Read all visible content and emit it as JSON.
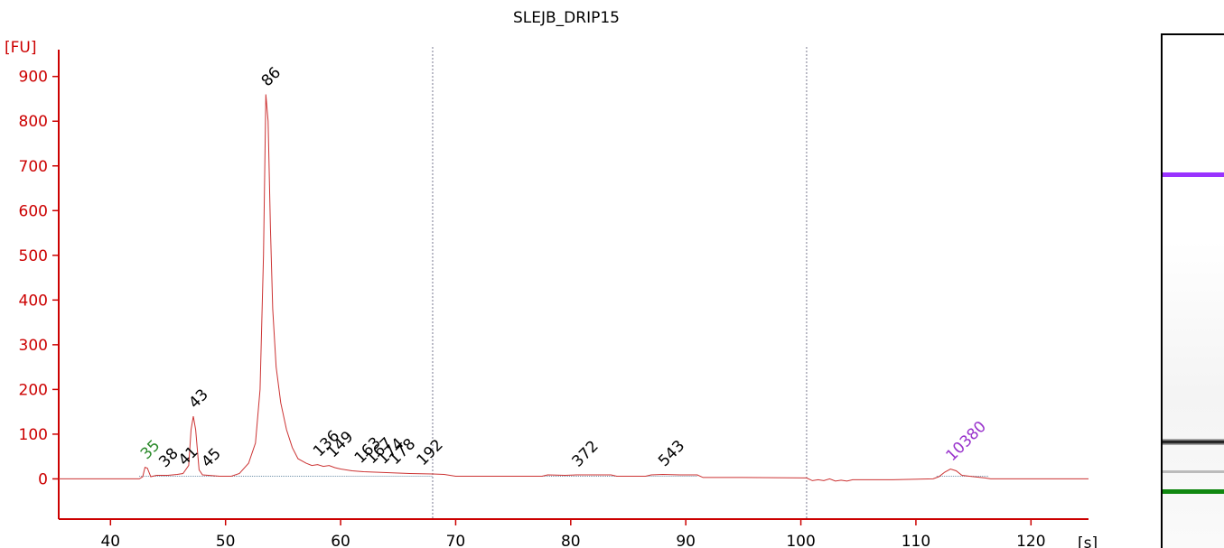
{
  "chart_data": {
    "type": "line",
    "title": "SLEJB_DRIP15",
    "y_unit": "[FU]",
    "x_unit": "[s]",
    "xlim": [
      35.5,
      125
    ],
    "ylim": [
      -90,
      960
    ],
    "x_ticks": [
      40,
      50,
      60,
      70,
      80,
      90,
      100,
      110,
      120
    ],
    "y_ticks": [
      0,
      100,
      200,
      300,
      400,
      500,
      600,
      700,
      800,
      900
    ],
    "grid": false,
    "markers_dotted_x": [
      68.0,
      100.5
    ],
    "series": [
      {
        "color": "#cc3333",
        "points": [
          [
            35.5,
            0
          ],
          [
            42.5,
            0
          ],
          [
            42.8,
            5
          ],
          [
            43.0,
            26
          ],
          [
            43.2,
            24
          ],
          [
            43.5,
            5
          ],
          [
            44.0,
            8
          ],
          [
            45.0,
            8
          ],
          [
            45.8,
            10
          ],
          [
            46.3,
            12
          ],
          [
            46.8,
            30
          ],
          [
            47.0,
            110
          ],
          [
            47.2,
            140
          ],
          [
            47.4,
            110
          ],
          [
            47.7,
            20
          ],
          [
            48.0,
            9
          ],
          [
            48.5,
            8
          ],
          [
            49.5,
            6
          ],
          [
            50.5,
            6
          ],
          [
            51.2,
            12
          ],
          [
            52.0,
            35
          ],
          [
            52.6,
            80
          ],
          [
            53.0,
            200
          ],
          [
            53.3,
            500
          ],
          [
            53.5,
            860
          ],
          [
            53.7,
            800
          ],
          [
            53.9,
            560
          ],
          [
            54.1,
            380
          ],
          [
            54.4,
            250
          ],
          [
            54.8,
            170
          ],
          [
            55.3,
            110
          ],
          [
            55.8,
            70
          ],
          [
            56.3,
            45
          ],
          [
            57.0,
            35
          ],
          [
            57.5,
            30
          ],
          [
            58.0,
            32
          ],
          [
            58.5,
            28
          ],
          [
            59.0,
            30
          ],
          [
            59.5,
            25
          ],
          [
            60.0,
            22
          ],
          [
            61.0,
            18
          ],
          [
            62.0,
            16
          ],
          [
            63.0,
            15
          ],
          [
            64.0,
            14
          ],
          [
            65.0,
            13
          ],
          [
            66.0,
            12
          ],
          [
            68.0,
            11
          ],
          [
            69.0,
            10
          ],
          [
            70.0,
            6
          ],
          [
            72.0,
            6
          ],
          [
            75.0,
            6
          ],
          [
            77.5,
            6
          ],
          [
            78.0,
            9
          ],
          [
            79.5,
            8
          ],
          [
            80.5,
            9
          ],
          [
            82.0,
            9
          ],
          [
            83.5,
            9
          ],
          [
            84.0,
            6
          ],
          [
            86.5,
            6
          ],
          [
            87.0,
            9
          ],
          [
            88.0,
            10
          ],
          [
            89.5,
            9
          ],
          [
            91.0,
            9
          ],
          [
            91.5,
            3
          ],
          [
            95.0,
            3
          ],
          [
            100.5,
            2
          ],
          [
            101.0,
            -4
          ],
          [
            101.5,
            -2
          ],
          [
            102.0,
            -4
          ],
          [
            102.5,
            0
          ],
          [
            103.0,
            -5
          ],
          [
            103.5,
            -3
          ],
          [
            104.0,
            -5
          ],
          [
            104.5,
            -2
          ],
          [
            105.0,
            -2
          ],
          [
            108.0,
            -2
          ],
          [
            111.5,
            0
          ],
          [
            112.0,
            5
          ],
          [
            112.5,
            15
          ],
          [
            113.0,
            22
          ],
          [
            113.5,
            18
          ],
          [
            114.0,
            8
          ],
          [
            115.0,
            5
          ],
          [
            116.0,
            2
          ],
          [
            116.5,
            0
          ],
          [
            125.0,
            0
          ]
        ]
      }
    ],
    "peaks": [
      {
        "label": "35",
        "x": 43.0,
        "y": 26,
        "color": "#2a8a2a"
      },
      {
        "label": "38",
        "x": 44.6,
        "y": 8,
        "color": "#000000"
      },
      {
        "label": "41",
        "x": 46.3,
        "y": 12,
        "color": "#000000"
      },
      {
        "label": "43",
        "x": 47.2,
        "y": 140,
        "color": "#000000"
      },
      {
        "label": "45",
        "x": 48.3,
        "y": 8,
        "color": "#000000"
      },
      {
        "label": "86",
        "x": 53.5,
        "y": 860,
        "color": "#000000"
      },
      {
        "label": "136",
        "x": 58.0,
        "y": 32,
        "color": "#000000"
      },
      {
        "label": "149",
        "x": 59.2,
        "y": 30,
        "color": "#000000"
      },
      {
        "label": "163",
        "x": 61.6,
        "y": 17,
        "color": "#000000"
      },
      {
        "label": "167",
        "x": 62.6,
        "y": 16,
        "color": "#000000"
      },
      {
        "label": "174",
        "x": 63.6,
        "y": 15,
        "color": "#000000"
      },
      {
        "label": "178",
        "x": 64.6,
        "y": 14,
        "color": "#000000"
      },
      {
        "label": "192",
        "x": 67.0,
        "y": 12,
        "color": "#000000"
      },
      {
        "label": "372",
        "x": 80.5,
        "y": 9,
        "color": "#000000"
      },
      {
        "label": "543",
        "x": 88.0,
        "y": 10,
        "color": "#000000"
      },
      {
        "label": "10380",
        "x": 113.0,
        "y": 22,
        "color": "#9933cc"
      }
    ],
    "gel_bands": [
      {
        "level": 0.266,
        "color": "#9933ff"
      },
      {
        "level": 0.785,
        "color": "#000000"
      },
      {
        "level": 0.845,
        "color": "#bbbbbb"
      },
      {
        "level": 0.882,
        "color": "#118811"
      }
    ]
  }
}
